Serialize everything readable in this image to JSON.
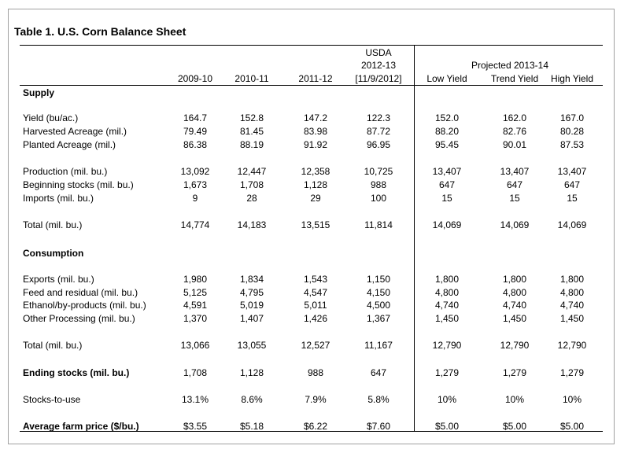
{
  "title": "Table 1.  U.S. Corn Balance Sheet",
  "header": {
    "usda_line1": "USDA",
    "usda_line2": "2012-13",
    "usda_line3": "[11/9/2012]",
    "projected": "Projected 2013-14",
    "columns": [
      "2009-10",
      "2010-11",
      "2011-12",
      "",
      "Low Yield",
      "Trend Yield",
      "High Yield"
    ]
  },
  "rows": [
    {
      "label": "Supply",
      "style": "section",
      "values": []
    },
    {
      "label": "Yield (bu/ac.)",
      "style": "normal",
      "values": [
        "164.7",
        "152.8",
        "147.2",
        "122.3",
        "152.0",
        "162.0",
        "167.0"
      ]
    },
    {
      "label": "Harvested Acreage (mil.)",
      "style": "normal",
      "values": [
        "79.49",
        "81.45",
        "83.98",
        "87.72",
        "88.20",
        "82.76",
        "80.28"
      ]
    },
    {
      "label": "Planted Acreage (mil.)",
      "style": "normal",
      "values": [
        "86.38",
        "88.19",
        "91.92",
        "96.95",
        "95.45",
        "90.01",
        "87.53"
      ]
    },
    {
      "label": "Production (mil. bu.)",
      "style": "normal",
      "values": [
        "13,092",
        "12,447",
        "12,358",
        "10,725",
        "13,407",
        "13,407",
        "13,407"
      ]
    },
    {
      "label": "Beginning stocks (mil. bu.)",
      "style": "normal",
      "values": [
        "1,673",
        "1,708",
        "1,128",
        "988",
        "647",
        "647",
        "647"
      ]
    },
    {
      "label": "Imports (mil. bu.)",
      "style": "normal",
      "values": [
        "9",
        "28",
        "29",
        "100",
        "15",
        "15",
        "15"
      ]
    },
    {
      "label": "Total (mil. bu.)",
      "style": "normal",
      "values": [
        "14,774",
        "14,183",
        "13,515",
        "11,814",
        "14,069",
        "14,069",
        "14,069"
      ]
    },
    {
      "label": "Consumption",
      "style": "section",
      "values": []
    },
    {
      "label": "Exports (mil. bu.)",
      "style": "normal",
      "values": [
        "1,980",
        "1,834",
        "1,543",
        "1,150",
        "1,800",
        "1,800",
        "1,800"
      ]
    },
    {
      "label": "Feed and residual (mil. bu.)",
      "style": "normal",
      "values": [
        "5,125",
        "4,795",
        "4,547",
        "4,150",
        "4,800",
        "4,800",
        "4,800"
      ]
    },
    {
      "label": "Ethanol/by-products (mil. bu.)",
      "style": "normal",
      "values": [
        "4,591",
        "5,019",
        "5,011",
        "4,500",
        "4,740",
        "4,740",
        "4,740"
      ]
    },
    {
      "label": "Other Processing (mil. bu.)",
      "style": "normal",
      "values": [
        "1,370",
        "1,407",
        "1,426",
        "1,367",
        "1,450",
        "1,450",
        "1,450"
      ]
    },
    {
      "label": "Total (mil. bu.)",
      "style": "normal",
      "values": [
        "13,066",
        "13,055",
        "12,527",
        "11,167",
        "12,790",
        "12,790",
        "12,790"
      ]
    },
    {
      "label": "Ending stocks (mil. bu.)",
      "style": "boldlabel",
      "values": [
        "1,708",
        "1,128",
        "988",
        "647",
        "1,279",
        "1,279",
        "1,279"
      ]
    },
    {
      "label": "Stocks-to-use",
      "style": "normal",
      "values": [
        "13.1%",
        "8.6%",
        "7.9%",
        "5.8%",
        "10%",
        "10%",
        "10%"
      ]
    },
    {
      "label": "Average farm price ($/bu.)",
      "style": "boldlabel",
      "values": [
        "$3.55",
        "$5.18",
        "$6.22",
        "$7.60",
        "$5.00",
        "$5.00",
        "$5.00"
      ]
    }
  ]
}
